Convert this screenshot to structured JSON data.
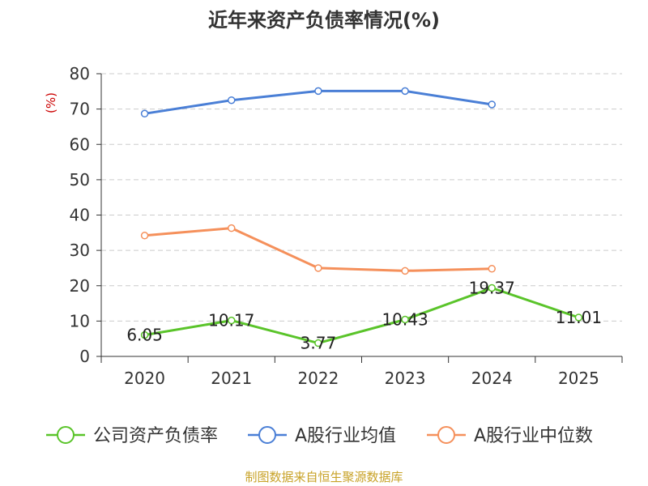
{
  "chart_data": {
    "type": "line",
    "title": "近年来资产负债率情况(%)",
    "ylabel": "(%)",
    "categories": [
      "2020",
      "2021",
      "2022",
      "2023",
      "2024",
      "2025"
    ],
    "ylim": [
      0,
      80
    ],
    "yticks": [
      0,
      10,
      20,
      30,
      40,
      50,
      60,
      70,
      80
    ],
    "grid": true,
    "legend_position": "bottom",
    "series": [
      {
        "name": "公司资产负债率",
        "color": "#5ac42a",
        "values": [
          6.05,
          10.17,
          3.77,
          10.43,
          19.37,
          11.01
        ],
        "labels": [
          "6.05",
          "10.17",
          "3.77",
          "10.43",
          "19.37",
          "11.01"
        ]
      },
      {
        "name": "A股行业均值",
        "color": "#4a7fd6",
        "values": [
          68.7,
          72.5,
          75.1,
          75.1,
          71.3,
          null
        ]
      },
      {
        "name": "A股行业中位数",
        "color": "#f5905b",
        "values": [
          34.2,
          36.3,
          25.0,
          24.2,
          24.8,
          null
        ]
      }
    ],
    "source": "制图数据来自恒生聚源数据库"
  }
}
